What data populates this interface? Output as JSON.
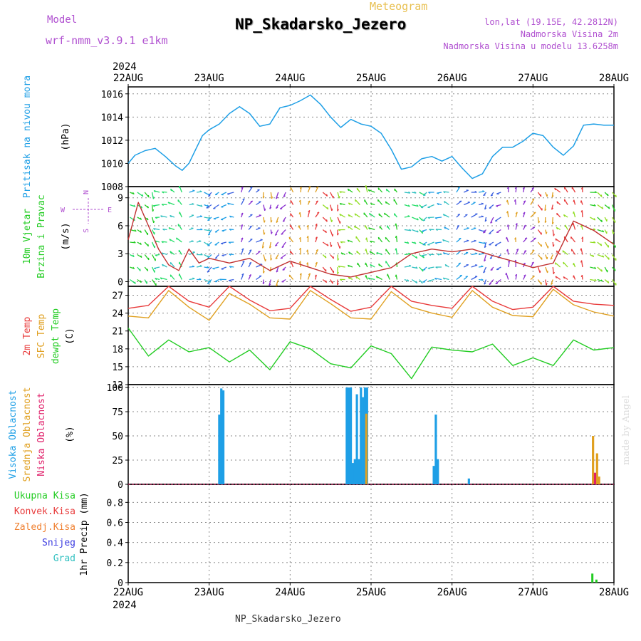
{
  "header": {
    "model_label": "Model",
    "model_name": "wrf-nmm_v3.9.1  e1km",
    "meteogram_label": "Meteogram",
    "station_title": "NP_Skadarsko_Jezero",
    "lonlat": "lon,lat (19.15E, 42.2812N)",
    "elevation": "Nadmorska Visina 2m",
    "model_elevation": "Nadmorska Visina u modelu 13.6258m",
    "year": "2024",
    "credit": "made by Angel",
    "footer_station": "NP_Skadarsko_Jezero"
  },
  "colors": {
    "pressure": "#1e9fe6",
    "temp2m": "#e83a3a",
    "sfc_temp": "#e0a020",
    "dewpoint": "#22cc22",
    "cloud_high": "#1e9fe6",
    "cloud_mid": "#e0a020",
    "cloud_low": "#e0206a",
    "purple": "#b050d0",
    "grid": "#888888"
  },
  "chart_data": [
    {
      "type": "line",
      "panel": "pressure",
      "ylabel": "Pritisak na nivou mora",
      "unit": "(hPa)",
      "yticks": [
        "1008",
        "1010",
        "1012",
        "1014",
        "1016"
      ],
      "ylim": [
        1008,
        1016.6
      ],
      "x_hours": [
        0,
        2,
        5,
        8,
        11,
        14,
        16,
        18,
        20,
        22,
        24,
        27,
        30,
        33,
        36,
        39,
        42,
        45,
        48,
        51,
        54,
        57,
        60,
        63,
        66,
        69,
        72,
        75,
        78,
        81,
        84,
        87,
        90,
        93,
        96,
        99,
        102,
        105,
        108,
        111,
        114,
        117,
        120,
        123,
        126,
        129,
        132,
        135,
        138,
        141,
        144
      ],
      "values": [
        1010.0,
        1010.7,
        1011.1,
        1011.3,
        1010.6,
        1009.8,
        1009.4,
        1010.0,
        1011.2,
        1012.4,
        1012.9,
        1013.4,
        1014.3,
        1014.9,
        1014.3,
        1013.2,
        1013.4,
        1014.8,
        1015.0,
        1015.4,
        1015.9,
        1015.1,
        1014.0,
        1013.1,
        1013.8,
        1013.4,
        1013.2,
        1012.6,
        1011.2,
        1009.5,
        1009.7,
        1010.4,
        1010.6,
        1010.2,
        1010.6,
        1009.6,
        1008.7,
        1009.1,
        1010.6,
        1011.4,
        1011.4,
        1011.9,
        1012.6,
        1012.4,
        1011.4,
        1010.7,
        1011.5,
        1013.3,
        1013.4,
        1013.3,
        1013.3
      ]
    },
    {
      "type": "line",
      "panel": "wind",
      "ylabel": "10m Vjetar Brzina i Pravac",
      "unit": "(m/s)",
      "yticks": [
        "0",
        "3",
        "6",
        "9"
      ],
      "ylim": [
        -0.5,
        10.2
      ],
      "x_hours": [
        0,
        3,
        6,
        9,
        12,
        15,
        18,
        21,
        24,
        30,
        36,
        42,
        48,
        54,
        60,
        66,
        72,
        78,
        84,
        90,
        96,
        102,
        108,
        114,
        120,
        126,
        132,
        138,
        144
      ],
      "values": [
        4.5,
        8.5,
        6,
        3.5,
        1.8,
        1.2,
        3.5,
        2,
        2.5,
        2,
        2.5,
        1.2,
        2.2,
        1.5,
        0.8,
        0.5,
        1,
        1.5,
        3,
        3.5,
        3.2,
        3.5,
        2.8,
        2.2,
        1.5,
        2,
        6.5,
        5.5,
        4
      ],
      "compass": [
        "N",
        "E",
        "S",
        "W"
      ]
    },
    {
      "type": "line",
      "panel": "temperature",
      "ylabel_lines": [
        "2m Temp",
        "SFC Temp",
        "dewpt Temp"
      ],
      "unit": "(C)",
      "yticks": [
        "12",
        "15",
        "18",
        "21",
        "24",
        "27"
      ],
      "ylim": [
        12,
        28.5
      ],
      "x_hours": [
        0,
        6,
        12,
        18,
        24,
        30,
        36,
        42,
        48,
        54,
        60,
        66,
        72,
        78,
        84,
        90,
        96,
        102,
        108,
        114,
        120,
        126,
        132,
        138,
        144
      ],
      "series": [
        {
          "name": "2m Temp",
          "values": [
            24.8,
            25.3,
            28.5,
            26.0,
            25.0,
            28.5,
            26.2,
            24.4,
            24.8,
            28.5,
            26.3,
            24.3,
            25.0,
            28.5,
            26.0,
            25.3,
            24.8,
            28.5,
            26.0,
            24.6,
            25.0,
            28.5,
            26.0,
            25.5,
            25.3
          ]
        },
        {
          "name": "SFC Temp",
          "values": [
            23.5,
            23.2,
            27.8,
            25.0,
            22.8,
            27.3,
            25.5,
            23.2,
            23.0,
            27.8,
            25.6,
            23.2,
            23.0,
            27.6,
            25.0,
            24.0,
            23.3,
            27.8,
            25.0,
            23.6,
            23.4,
            28.0,
            25.4,
            24.2,
            23.5
          ]
        },
        {
          "name": "dewpt Temp",
          "values": [
            21.5,
            16.8,
            19.5,
            17.5,
            18.2,
            15.8,
            17.8,
            14.5,
            19.2,
            18.0,
            15.5,
            14.8,
            18.5,
            17.2,
            13.0,
            18.3,
            17.8,
            17.5,
            18.8,
            15.2,
            16.5,
            15.2,
            19.5,
            17.8,
            18.2
          ]
        }
      ]
    },
    {
      "type": "bar",
      "panel": "cloud_cover",
      "ylabel_lines": [
        "Visoka Oblacnost",
        "Srednja Oblacnost",
        "Niska Oblacnost"
      ],
      "unit": "(%)",
      "yticks": [
        "0",
        "25",
        "50",
        "75",
        "100"
      ],
      "ylim": [
        0,
        103
      ],
      "series": [
        {
          "name": "Visoka Oblacnost",
          "x_hours": [
            27.0,
            27.6,
            28.2,
            64.8,
            65.4,
            66.0,
            66.6,
            67.2,
            67.8,
            68.4,
            69.0,
            69.6,
            70.2,
            70.8,
            90.6,
            91.2,
            91.8,
            101.0
          ],
          "values": [
            72,
            99,
            97,
            100,
            100,
            100,
            22,
            26,
            93,
            26,
            100,
            90,
            100,
            100,
            19,
            72,
            26,
            6
          ]
        },
        {
          "name": "Srednja Oblacnost",
          "x_hours": [
            70.6,
            137.8,
            139.0,
            139.6
          ],
          "values": [
            73,
            50,
            32,
            8
          ]
        },
        {
          "name": "Niska Oblacnost",
          "x_hours": [
            138.4
          ],
          "values": [
            12
          ]
        }
      ]
    },
    {
      "type": "bar",
      "panel": "precipitation",
      "ylabel": "1hr Precip (mm)",
      "yticks": [
        "0",
        "0.2",
        "0.4",
        "0.6",
        "0.8"
      ],
      "ylim": [
        0,
        0.98
      ],
      "legend": [
        "Ukupna Kisa",
        "Konvek.Kisa",
        "Zaledj.Kisa",
        "Snijeg",
        "Grad"
      ],
      "legend_colors": [
        "#22cc22",
        "#e83a3a",
        "#f08030",
        "#3a3ae0",
        "#30c0c0"
      ],
      "series": [
        {
          "name": "Ukupna Kisa",
          "x_hours": [
            137.6,
            138.8
          ],
          "values": [
            0.09,
            0.03
          ]
        }
      ]
    }
  ],
  "x_axis": {
    "labels": [
      "22AUG",
      "23AUG",
      "24AUG",
      "25AUG",
      "26AUG",
      "27AUG",
      "28AUG"
    ],
    "year": "2024",
    "range_hours": [
      0,
      144
    ]
  }
}
